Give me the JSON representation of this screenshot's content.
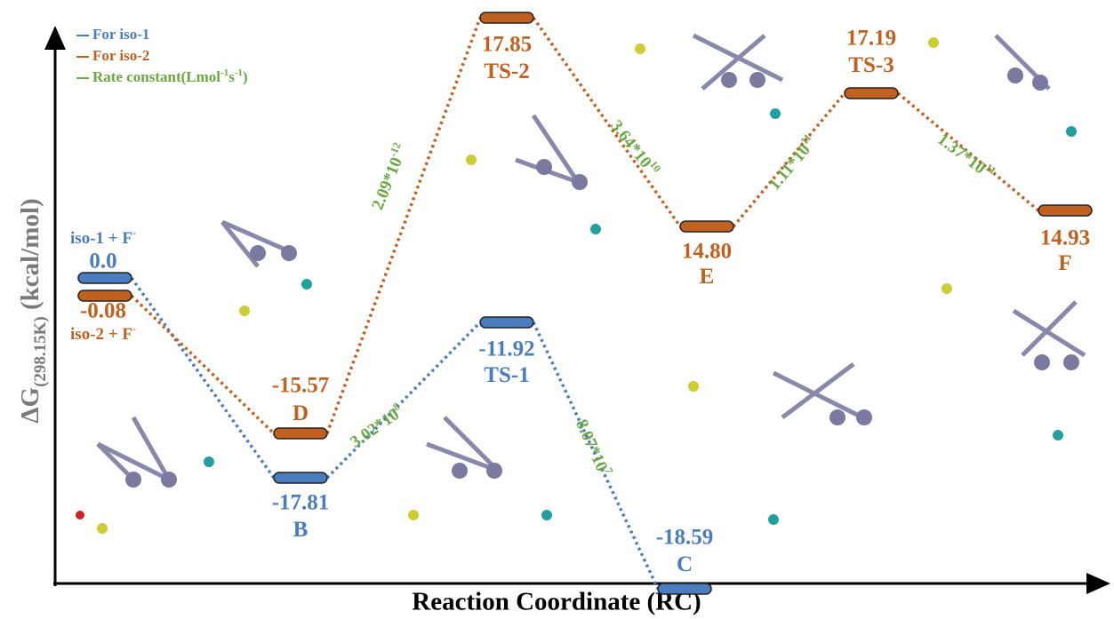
{
  "axis": {
    "y_label": {
      "main": "ΔG",
      "sub": "(298.15K)",
      "unit": " (kcal/mol)"
    },
    "x_label": "Reaction Coordinate (RC)"
  },
  "legend": [
    {
      "text": "For iso-1",
      "color": "#4a7cc0"
    },
    {
      "text": "For iso-2",
      "color": "#c0611f"
    },
    {
      "text": "Rate constant(Lmol",
      "sup1": "-1",
      "mid": "s",
      "sup2": "-1",
      "end": ")",
      "color": "#6aa843"
    }
  ],
  "levels": [
    {
      "name": "iso-1 + F",
      "name_sup": "-",
      "energy": "0.0",
      "series": 0
    },
    {
      "name": "iso-2 + F",
      "name_sup": "-",
      "energy": "-0.08",
      "series": 1
    },
    {
      "name": "D",
      "energy": "-15.57",
      "series": 1
    },
    {
      "name": "B",
      "energy": "-17.81",
      "series": 0
    },
    {
      "name": "TS-1",
      "energy": "-11.92",
      "series": 0
    },
    {
      "name": "TS-2",
      "energy": "17.85",
      "series": 1
    },
    {
      "name": "C",
      "energy": "-18.59",
      "series": 0
    },
    {
      "name": "E",
      "energy": "14.80",
      "series": 1
    },
    {
      "name": "TS-3",
      "energy": "17.19",
      "series": 1
    },
    {
      "name": "F",
      "energy": "14.93",
      "series": 1
    }
  ],
  "rates": [
    {
      "base": "2.09*10",
      "exp": "-12"
    },
    {
      "base": "3.02*10",
      "exp": "8"
    },
    {
      "base": "3.64*10",
      "exp": "10"
    },
    {
      "base": "8.07*10",
      "exp": "7"
    },
    {
      "base": "1.11*10",
      "exp": "11"
    },
    {
      "base": "1.37*10",
      "exp": "11"
    }
  ]
}
